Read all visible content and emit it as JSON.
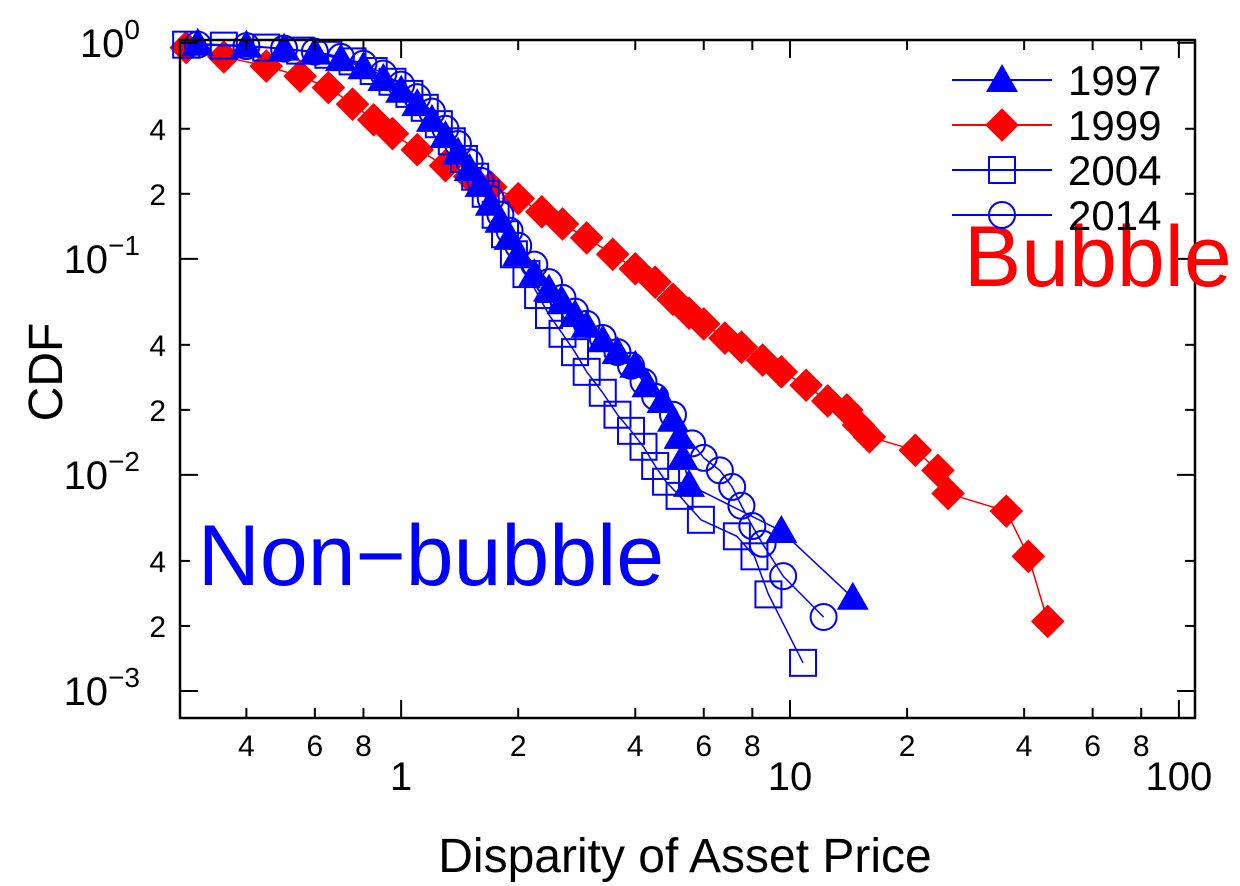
{
  "chart_data": {
    "type": "scatter",
    "xscale": "log",
    "yscale": "log",
    "xlabel": "Disparity of Asset Price",
    "ylabel": "CDF",
    "xlim": [
      0.27,
      110
    ],
    "ylim": [
      0.00075,
      1.03
    ],
    "grid": false,
    "legend_position": "top-right",
    "x_major_ticks": [
      {
        "value": 1,
        "label": "1"
      },
      {
        "value": 10,
        "label": "10"
      },
      {
        "value": 100,
        "label": "100"
      }
    ],
    "x_minor_ticks": [
      {
        "value": 0.4,
        "label": "4"
      },
      {
        "value": 0.6,
        "label": "6"
      },
      {
        "value": 0.8,
        "label": "8"
      },
      {
        "value": 2,
        "label": "2"
      },
      {
        "value": 4,
        "label": "4"
      },
      {
        "value": 6,
        "label": "6"
      },
      {
        "value": 8,
        "label": "8"
      },
      {
        "value": 20,
        "label": "2"
      },
      {
        "value": 40,
        "label": "4"
      },
      {
        "value": 60,
        "label": "6"
      },
      {
        "value": 80,
        "label": "8"
      }
    ],
    "y_major_ticks": [
      {
        "value": 1,
        "base": "10",
        "exp": "0"
      },
      {
        "value": 0.1,
        "base": "10",
        "exp": "−1"
      },
      {
        "value": 0.01,
        "base": "10",
        "exp": "−2"
      },
      {
        "value": 0.001,
        "base": "10",
        "exp": "−3"
      }
    ],
    "y_minor_ticks": [
      {
        "value": 0.4,
        "label": "4"
      },
      {
        "value": 0.2,
        "label": "2"
      },
      {
        "value": 0.04,
        "label": "4"
      },
      {
        "value": 0.02,
        "label": "2"
      },
      {
        "value": 0.004,
        "label": "4"
      },
      {
        "value": 0.002,
        "label": "2"
      }
    ],
    "annotations": [
      {
        "text": "Bubble",
        "color": "#ff0000",
        "x": 28,
        "y": 0.075
      },
      {
        "text": "Non−bubble",
        "color": "#0000ff",
        "x": 0.3,
        "y": 0.0031
      }
    ],
    "series": [
      {
        "name": "1997",
        "color": "#0000ff",
        "marker": "triangle-filled",
        "points": [
          [
            0.3,
            0.99
          ],
          [
            0.4,
            0.97
          ],
          [
            0.5,
            0.94
          ],
          [
            0.6,
            0.9
          ],
          [
            0.7,
            0.84
          ],
          [
            0.8,
            0.77
          ],
          [
            0.9,
            0.68
          ],
          [
            1.0,
            0.6
          ],
          [
            1.1,
            0.52
          ],
          [
            1.2,
            0.44
          ],
          [
            1.3,
            0.37
          ],
          [
            1.4,
            0.31
          ],
          [
            1.5,
            0.26
          ],
          [
            1.6,
            0.22
          ],
          [
            1.7,
            0.18
          ],
          [
            1.8,
            0.15
          ],
          [
            1.9,
            0.125
          ],
          [
            2.0,
            0.105
          ],
          [
            2.2,
            0.085
          ],
          [
            2.4,
            0.072
          ],
          [
            2.6,
            0.063
          ],
          [
            2.8,
            0.055
          ],
          [
            3.0,
            0.049
          ],
          [
            3.3,
            0.042
          ],
          [
            3.6,
            0.037
          ],
          [
            4.0,
            0.032
          ],
          [
            4.3,
            0.026
          ],
          [
            4.7,
            0.022
          ],
          [
            5.0,
            0.018
          ],
          [
            5.2,
            0.015
          ],
          [
            5.3,
            0.012
          ],
          [
            5.5,
            0.009
          ],
          [
            9.5,
            0.0055
          ],
          [
            14.5,
            0.0027
          ]
        ]
      },
      {
        "name": "1999",
        "color": "#ff0000",
        "marker": "diamond-filled",
        "points": [
          [
            0.28,
            0.95
          ],
          [
            0.35,
            0.86
          ],
          [
            0.45,
            0.78
          ],
          [
            0.55,
            0.7
          ],
          [
            0.65,
            0.62
          ],
          [
            0.75,
            0.52
          ],
          [
            0.85,
            0.44
          ],
          [
            0.95,
            0.38
          ],
          [
            1.1,
            0.32
          ],
          [
            1.3,
            0.27
          ],
          [
            1.5,
            0.24
          ],
          [
            1.7,
            0.215
          ],
          [
            2.0,
            0.19
          ],
          [
            2.3,
            0.165
          ],
          [
            2.6,
            0.145
          ],
          [
            3.0,
            0.125
          ],
          [
            3.5,
            0.105
          ],
          [
            4.0,
            0.09
          ],
          [
            4.5,
            0.078
          ],
          [
            5.0,
            0.065
          ],
          [
            5.5,
            0.056
          ],
          [
            6.0,
            0.05
          ],
          [
            6.8,
            0.043
          ],
          [
            7.5,
            0.039
          ],
          [
            8.5,
            0.034
          ],
          [
            9.5,
            0.03
          ],
          [
            11,
            0.026
          ],
          [
            12.5,
            0.022
          ],
          [
            14,
            0.02
          ],
          [
            15,
            0.017
          ],
          [
            16,
            0.015
          ],
          [
            21,
            0.013
          ],
          [
            24,
            0.0105
          ],
          [
            25.5,
            0.0082
          ],
          [
            36,
            0.0068
          ],
          [
            41,
            0.0042
          ],
          [
            46,
            0.0021
          ]
        ]
      },
      {
        "name": "2004",
        "color": "#0000ff",
        "marker": "square-open",
        "points": [
          [
            0.28,
            0.98
          ],
          [
            0.35,
            0.97
          ],
          [
            0.45,
            0.95
          ],
          [
            0.55,
            0.92
          ],
          [
            0.65,
            0.88
          ],
          [
            0.75,
            0.82
          ],
          [
            0.85,
            0.74
          ],
          [
            0.95,
            0.66
          ],
          [
            1.05,
            0.58
          ],
          [
            1.15,
            0.5
          ],
          [
            1.25,
            0.42
          ],
          [
            1.35,
            0.35
          ],
          [
            1.45,
            0.29
          ],
          [
            1.55,
            0.24
          ],
          [
            1.65,
            0.2
          ],
          [
            1.75,
            0.16
          ],
          [
            1.85,
            0.13
          ],
          [
            1.95,
            0.105
          ],
          [
            2.1,
            0.085
          ],
          [
            2.25,
            0.068
          ],
          [
            2.4,
            0.055
          ],
          [
            2.6,
            0.045
          ],
          [
            2.8,
            0.037
          ],
          [
            3.0,
            0.03
          ],
          [
            3.3,
            0.024
          ],
          [
            3.6,
            0.019
          ],
          [
            3.9,
            0.016
          ],
          [
            4.2,
            0.0135
          ],
          [
            4.5,
            0.011
          ],
          [
            4.8,
            0.0093
          ],
          [
            5.2,
            0.008
          ],
          [
            5.9,
            0.0062
          ],
          [
            7.3,
            0.0052
          ],
          [
            8.1,
            0.0042
          ],
          [
            8.8,
            0.0028
          ],
          [
            10.8,
            0.00135
          ]
        ]
      },
      {
        "name": "2014",
        "color": "#0000ff",
        "marker": "circle-open",
        "points": [
          [
            0.3,
            0.98
          ],
          [
            0.4,
            0.965
          ],
          [
            0.5,
            0.94
          ],
          [
            0.6,
            0.91
          ],
          [
            0.7,
            0.86
          ],
          [
            0.8,
            0.8
          ],
          [
            0.9,
            0.72
          ],
          [
            1.0,
            0.64
          ],
          [
            1.1,
            0.56
          ],
          [
            1.2,
            0.48
          ],
          [
            1.3,
            0.4
          ],
          [
            1.4,
            0.34
          ],
          [
            1.5,
            0.28
          ],
          [
            1.6,
            0.23
          ],
          [
            1.7,
            0.19
          ],
          [
            1.8,
            0.16
          ],
          [
            1.9,
            0.135
          ],
          [
            2.0,
            0.115
          ],
          [
            2.2,
            0.094
          ],
          [
            2.4,
            0.078
          ],
          [
            2.6,
            0.066
          ],
          [
            2.8,
            0.057
          ],
          [
            3.0,
            0.05
          ],
          [
            3.3,
            0.043
          ],
          [
            3.6,
            0.037
          ],
          [
            3.9,
            0.032
          ],
          [
            4.2,
            0.027
          ],
          [
            4.5,
            0.023
          ],
          [
            5.0,
            0.019
          ],
          [
            5.6,
            0.014
          ],
          [
            6.0,
            0.012
          ],
          [
            6.6,
            0.0105
          ],
          [
            7.1,
            0.0088
          ],
          [
            7.5,
            0.0072
          ],
          [
            8.0,
            0.0058
          ],
          [
            8.5,
            0.0048
          ],
          [
            9.6,
            0.0034
          ],
          [
            12.2,
            0.0022
          ]
        ]
      }
    ]
  }
}
